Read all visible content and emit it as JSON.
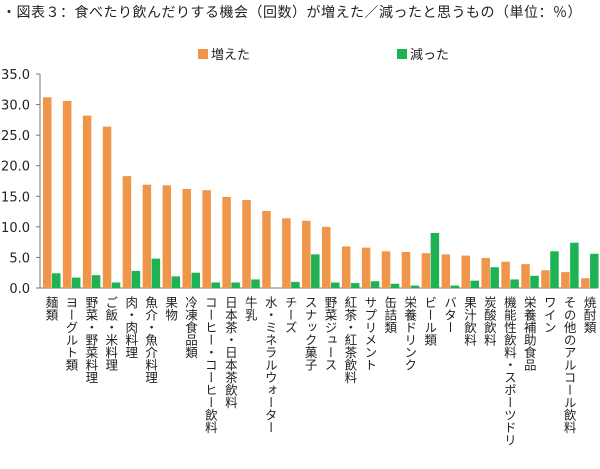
{
  "title": "・図表３：食べたり飲んだりする機会（回数）が増えた／減ったと思うもの（単位：％）",
  "chart_data": {
    "type": "bar",
    "title": "・図表３：食べたり飲んだりする機会（回数）が増えた／減ったと思うもの（単位：％）",
    "xlabel": "",
    "ylabel": "",
    "ylim": [
      0,
      35
    ],
    "yticks": [
      "0.0",
      "5.0",
      "10.0",
      "15.0",
      "20.0",
      "25.0",
      "30.0",
      "35.0"
    ],
    "grid": false,
    "legend_position": "top",
    "categories": [
      "麺類",
      "ヨーグルト類",
      "野菜・野菜料理",
      "ご飯・米料理",
      "肉・肉料理",
      "魚介・魚介料理",
      "果物",
      "冷凍食品類",
      "コーヒー・コーヒー飲料",
      "日本茶・日本茶飲料",
      "牛乳",
      "水・ミネラルウォーター",
      "チーズ",
      "スナック菓子",
      "野菜ジュース",
      "紅茶・紅茶飲料",
      "サプリメント",
      "缶詰類",
      "栄養ドリンク",
      "ビール類",
      "バター",
      "果汁飲料",
      "炭酸飲料",
      "機能性飲料・スポーツドリ",
      "栄養補助食品",
      "ワイン",
      "その他のアルコール飲料",
      "焼酎類"
    ],
    "series": [
      {
        "name": "増えた",
        "color": "#f0964a",
        "values": [
          31.2,
          30.6,
          28.2,
          26.4,
          18.3,
          16.9,
          16.8,
          16.2,
          16.0,
          14.9,
          14.4,
          12.6,
          11.4,
          11.0,
          10.0,
          6.8,
          6.6,
          6.0,
          5.9,
          5.7,
          5.5,
          5.3,
          4.9,
          4.3,
          3.9,
          2.9,
          2.6,
          1.6
        ]
      },
      {
        "name": "減った",
        "color": "#1db254",
        "values": [
          2.4,
          1.7,
          2.1,
          0.9,
          2.8,
          4.8,
          1.9,
          2.5,
          0.9,
          0.9,
          1.4,
          0.0,
          1.0,
          5.5,
          0.9,
          0.8,
          1.1,
          0.7,
          0.4,
          9.0,
          0.4,
          1.2,
          3.4,
          1.4,
          2.0,
          6.0,
          7.4,
          5.6
        ]
      }
    ]
  }
}
